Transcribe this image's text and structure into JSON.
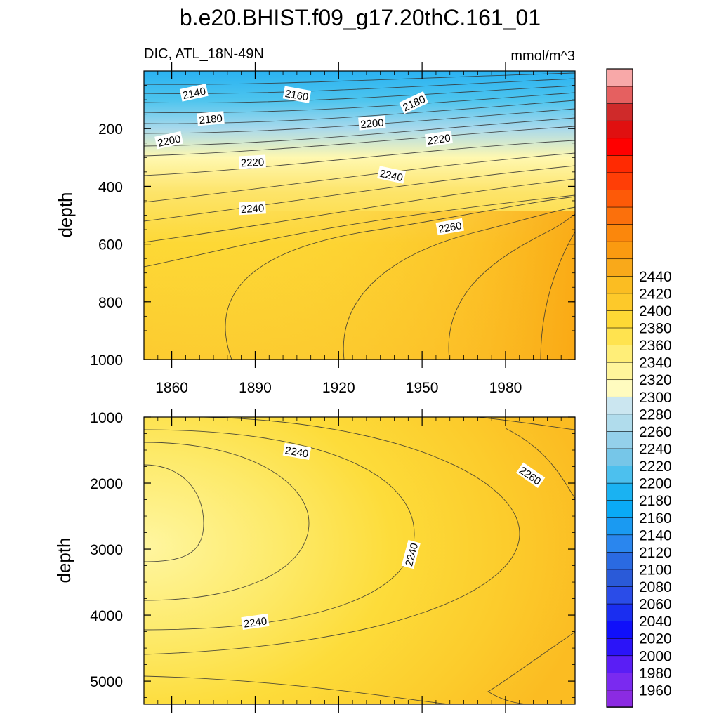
{
  "chart_data": {
    "type": "heatmap",
    "title": "b.e20.BHIST.f09_g17.20thC.161_01",
    "subtitle_left": "DIC, ATL_18N-49N",
    "subtitle_right": "mmol/m^3",
    "xlabel": "",
    "x_ticks": [
      1860,
      1890,
      1920,
      1950,
      1980
    ],
    "xlim": [
      1850,
      2005
    ],
    "panels": [
      {
        "name": "upper",
        "ylabel": "depth",
        "ylim": [
          0,
          1000
        ],
        "y_ticks": [
          200,
          400,
          600,
          800,
          1000
        ],
        "contour_labels": [
          {
            "text": "2140",
            "year": 1868,
            "depth": 75,
            "angle": -12
          },
          {
            "text": "2160",
            "year": 1905,
            "depth": 82,
            "angle": 10
          },
          {
            "text": "2180",
            "year": 1947,
            "depth": 110,
            "angle": -25
          },
          {
            "text": "2180",
            "year": 1874,
            "depth": 165,
            "angle": -5
          },
          {
            "text": "2200",
            "year": 1859,
            "depth": 240,
            "angle": -12
          },
          {
            "text": "2200",
            "year": 1932,
            "depth": 180,
            "angle": -5
          },
          {
            "text": "2220",
            "year": 1889,
            "depth": 315,
            "angle": -3
          },
          {
            "text": "2220",
            "year": 1956,
            "depth": 235,
            "angle": -8
          },
          {
            "text": "2240",
            "year": 1939,
            "depth": 360,
            "angle": 12
          },
          {
            "text": "2240",
            "year": 1889,
            "depth": 475,
            "angle": -3
          },
          {
            "text": "2260",
            "year": 1960,
            "depth": 540,
            "angle": -10
          }
        ]
      },
      {
        "name": "lower",
        "ylabel": "depth",
        "ylim": [
          1000,
          5350
        ],
        "y_ticks": [
          1000,
          2000,
          3000,
          4000,
          5000
        ],
        "contour_labels": [
          {
            "text": "2240",
            "year": 1905,
            "depth": 1520,
            "angle": 10
          },
          {
            "text": "2260",
            "year": 1989,
            "depth": 1880,
            "angle": 35
          },
          {
            "text": "2240",
            "year": 1946,
            "depth": 3080,
            "angle": -75
          },
          {
            "text": "2240",
            "year": 1890,
            "depth": 4100,
            "angle": -8
          }
        ]
      }
    ],
    "colorbar": {
      "levels": [
        1960,
        1980,
        2000,
        2020,
        2040,
        2060,
        2080,
        2100,
        2120,
        2140,
        2160,
        2180,
        2200,
        2220,
        2240,
        2260,
        2280,
        2300,
        2320,
        2340,
        2360,
        2380,
        2400,
        2420,
        2440
      ],
      "label_values": [
        1960,
        1980,
        2000,
        2020,
        2040,
        2060,
        2080,
        2100,
        2120,
        2140,
        2160,
        2180,
        2200,
        2220,
        2240,
        2260,
        2280,
        2300,
        2320,
        2340,
        2360,
        2380,
        2400,
        2420,
        2440
      ],
      "colors": [
        "#8b2be2",
        "#7a2af0",
        "#5a1ef5",
        "#2b14f8",
        "#1010fa",
        "#1a2ef0",
        "#2a4ce8",
        "#2a5ad8",
        "#2a6ae2",
        "#2a86ee",
        "#1a9af2",
        "#0aaaf6",
        "#1ab2f2",
        "#4cc0ee",
        "#76c6e8",
        "#94d0ea",
        "#b0dcec",
        "#cbe6f0",
        "#fffbbf",
        "#fff59b",
        "#ffee78",
        "#ffe34f",
        "#fed835",
        "#fdc92a",
        "#fbbd22",
        "#f9a91a",
        "#fa9a10",
        "#fb870c",
        "#fb700c",
        "#fd5a08",
        "#ff3e06",
        "#ff2a02",
        "#ff0000",
        "#e01010",
        "#cf2a2a",
        "#e56060",
        "#f8a8a8"
      ]
    }
  }
}
